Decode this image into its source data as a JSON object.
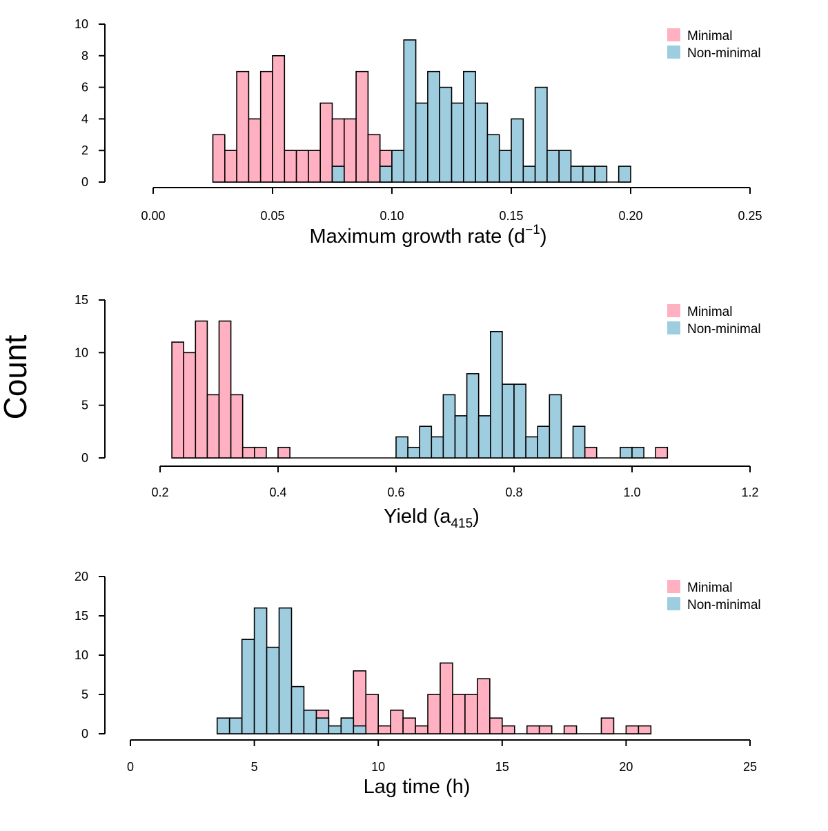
{
  "y_label": "Count",
  "colors": {
    "minimal": "#FFB1C1",
    "non_minimal": "#9ECDE0",
    "stroke": "#000000"
  },
  "chart_data": [
    {
      "type": "histogram",
      "xlabel": {
        "main": "Maximum growth rate (d",
        "sup": "−1",
        "tail": ")"
      },
      "xlim": [
        0,
        0.25
      ],
      "ylim": [
        0,
        10
      ],
      "xticks": [
        "0.00",
        "0.05",
        "0.10",
        "0.15",
        "0.20",
        "0.25"
      ],
      "yticks": [
        "0",
        "2",
        "4",
        "6",
        "8",
        "10"
      ],
      "legend": {
        "position": "top-right",
        "entries": [
          "Minimal",
          "Non-minimal"
        ]
      },
      "bin_width": 0.005,
      "series": [
        {
          "name": "Minimal",
          "color": "#FFB1C1",
          "bins": [
            [
              0.025,
              3
            ],
            [
              0.03,
              2
            ],
            [
              0.035,
              7
            ],
            [
              0.04,
              4
            ],
            [
              0.045,
              7
            ],
            [
              0.05,
              8
            ],
            [
              0.055,
              2
            ],
            [
              0.06,
              2
            ],
            [
              0.065,
              2
            ],
            [
              0.07,
              5
            ],
            [
              0.075,
              4
            ],
            [
              0.08,
              4
            ],
            [
              0.085,
              7
            ],
            [
              0.09,
              3
            ],
            [
              0.095,
              2
            ]
          ]
        },
        {
          "name": "Non-minimal",
          "color": "#9ECDE0",
          "bins": [
            [
              0.075,
              1
            ],
            [
              0.095,
              1
            ],
            [
              0.1,
              2
            ],
            [
              0.105,
              9
            ],
            [
              0.11,
              5
            ],
            [
              0.115,
              7
            ],
            [
              0.12,
              6
            ],
            [
              0.125,
              5
            ],
            [
              0.13,
              7
            ],
            [
              0.135,
              5
            ],
            [
              0.14,
              3
            ],
            [
              0.145,
              2
            ],
            [
              0.15,
              4
            ],
            [
              0.155,
              1
            ],
            [
              0.16,
              6
            ],
            [
              0.165,
              2
            ],
            [
              0.17,
              2
            ],
            [
              0.175,
              1
            ],
            [
              0.18,
              1
            ],
            [
              0.185,
              1
            ],
            [
              0.195,
              1
            ]
          ]
        }
      ]
    },
    {
      "type": "histogram",
      "xlabel": {
        "main": "Yield (a",
        "sub": "415",
        "tail": ")"
      },
      "xlim": [
        0.2,
        1.2
      ],
      "ylim": [
        0,
        15
      ],
      "xticks": [
        "0.2",
        "0.4",
        "0.6",
        "0.8",
        "1.0",
        "1.2"
      ],
      "yticks": [
        "0",
        "5",
        "10",
        "15"
      ],
      "legend": {
        "position": "top-right",
        "entries": [
          "Minimal",
          "Non-minimal"
        ]
      },
      "bin_width": 0.02,
      "series": [
        {
          "name": "Minimal",
          "color": "#FFB1C1",
          "bins": [
            [
              0.22,
              11
            ],
            [
              0.24,
              10
            ],
            [
              0.26,
              13
            ],
            [
              0.28,
              6
            ],
            [
              0.3,
              13
            ],
            [
              0.32,
              6
            ],
            [
              0.34,
              1
            ],
            [
              0.36,
              1
            ],
            [
              0.4,
              1
            ],
            [
              0.92,
              1
            ],
            [
              1.04,
              1
            ]
          ]
        },
        {
          "name": "Non-minimal",
          "color": "#9ECDE0",
          "bins": [
            [
              0.6,
              2
            ],
            [
              0.62,
              1
            ],
            [
              0.64,
              3
            ],
            [
              0.66,
              2
            ],
            [
              0.68,
              6
            ],
            [
              0.7,
              4
            ],
            [
              0.72,
              8
            ],
            [
              0.74,
              4
            ],
            [
              0.76,
              12
            ],
            [
              0.78,
              7
            ],
            [
              0.8,
              7
            ],
            [
              0.82,
              2
            ],
            [
              0.84,
              3
            ],
            [
              0.86,
              6
            ],
            [
              0.9,
              3
            ],
            [
              0.98,
              1
            ],
            [
              1.0,
              1
            ]
          ]
        }
      ]
    },
    {
      "type": "histogram",
      "xlabel": {
        "main": "Lag time (h)"
      },
      "xlim": [
        0,
        25
      ],
      "ylim": [
        0,
        20
      ],
      "xticks": [
        "0",
        "5",
        "10",
        "15",
        "20",
        "25"
      ],
      "yticks": [
        "0",
        "5",
        "10",
        "15",
        "20"
      ],
      "legend": {
        "position": "top-right",
        "entries": [
          "Minimal",
          "Non-minimal"
        ]
      },
      "bin_width": 0.5,
      "series": [
        {
          "name": "Minimal",
          "color": "#FFB1C1",
          "bins": [
            [
              7.5,
              3
            ],
            [
              8.5,
              2
            ],
            [
              9.0,
              8
            ],
            [
              9.5,
              5
            ],
            [
              10.0,
              1
            ],
            [
              10.5,
              3
            ],
            [
              11.0,
              2
            ],
            [
              11.5,
              1
            ],
            [
              12.0,
              5
            ],
            [
              12.5,
              9
            ],
            [
              13.0,
              5
            ],
            [
              13.5,
              5
            ],
            [
              14.0,
              7
            ],
            [
              14.5,
              2
            ],
            [
              15.0,
              1
            ],
            [
              16.0,
              1
            ],
            [
              16.5,
              1
            ],
            [
              17.5,
              1
            ],
            [
              19.0,
              2
            ],
            [
              20.0,
              1
            ],
            [
              20.5,
              1
            ]
          ]
        },
        {
          "name": "Non-minimal",
          "color": "#9ECDE0",
          "bins": [
            [
              3.5,
              2
            ],
            [
              4.0,
              2
            ],
            [
              4.5,
              12
            ],
            [
              5.0,
              16
            ],
            [
              5.5,
              11
            ],
            [
              6.0,
              16
            ],
            [
              6.5,
              6
            ],
            [
              7.0,
              3
            ],
            [
              7.5,
              2
            ],
            [
              8.0,
              1
            ],
            [
              8.5,
              2
            ],
            [
              9.0,
              1
            ]
          ]
        }
      ]
    }
  ]
}
